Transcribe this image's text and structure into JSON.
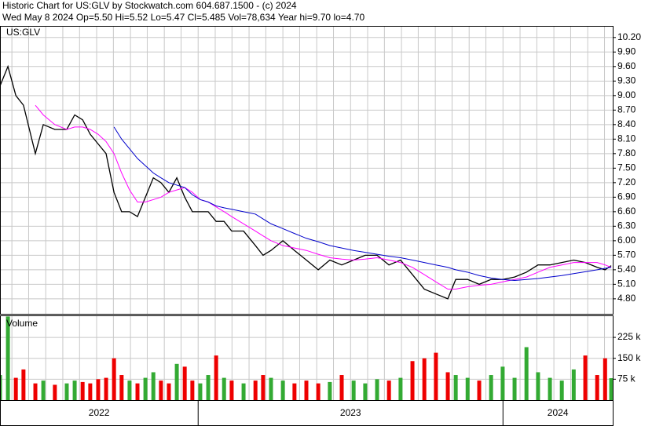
{
  "chart_data": {
    "type": "line",
    "title": "Historic Chart for US:GLV by Stockwatch.com 604.687.1500 - (c) 2024",
    "subtitle": "Wed May  8 2024  Op=5.50  Hi=5.52  Lo=5.47  Cl=5.485  Vol=78,634  Year hi=9.70  lo=4.70",
    "symbol": "US:GLV",
    "x": [
      2022.35,
      2022.376,
      2022.402,
      2022.427,
      2022.466,
      2022.492,
      2022.53,
      2022.569,
      2022.595,
      2022.621,
      2022.646,
      2022.672,
      2022.698,
      2022.724,
      2022.749,
      2022.775,
      2022.801,
      2022.827,
      2022.853,
      2022.878,
      2022.904,
      2022.93,
      2022.956,
      2022.981,
      2023.007,
      2023.033,
      2023.059,
      2023.085,
      2023.11,
      2023.149,
      2023.188,
      2023.213,
      2023.239,
      2023.278,
      2023.316,
      2023.355,
      2023.394,
      2023.432,
      2023.471,
      2023.51,
      2023.548,
      2023.587,
      2023.626,
      2023.664,
      2023.703,
      2023.742,
      2023.78,
      2023.819,
      2023.845,
      2023.884,
      2023.922,
      2023.961,
      2023.999,
      2024.038,
      2024.077,
      2024.115,
      2024.154,
      2024.193,
      2024.232,
      2024.27,
      2024.309,
      2024.335,
      2024.355
    ],
    "series": [
      {
        "color": "#000000",
        "values": [
          9.2,
          9.6,
          9.0,
          8.8,
          7.8,
          8.4,
          8.3,
          8.3,
          8.6,
          8.5,
          8.2,
          8.0,
          7.8,
          7.0,
          6.6,
          6.6,
          6.5,
          6.9,
          7.3,
          7.2,
          7.0,
          7.3,
          6.9,
          6.6,
          6.6,
          6.6,
          6.4,
          6.4,
          6.2,
          6.2,
          5.9,
          5.7,
          5.8,
          6.0,
          5.8,
          5.6,
          5.4,
          5.6,
          5.5,
          5.6,
          5.7,
          5.7,
          5.5,
          5.6,
          5.3,
          5.0,
          4.9,
          4.8,
          5.2,
          5.2,
          5.1,
          5.2,
          5.2,
          5.25,
          5.35,
          5.5,
          5.5,
          5.55,
          5.6,
          5.55,
          5.45,
          5.4,
          5.485
        ]
      },
      {
        "color": "#ff00ff",
        "values": [
          null,
          null,
          null,
          null,
          8.8,
          8.6,
          8.4,
          8.3,
          8.35,
          8.35,
          8.3,
          8.2,
          8.05,
          7.8,
          7.4,
          7.05,
          6.8,
          6.8,
          6.85,
          6.9,
          7.0,
          7.05,
          7.1,
          7.0,
          6.85,
          6.8,
          6.7,
          6.6,
          6.5,
          6.35,
          6.2,
          6.1,
          6.0,
          5.9,
          5.85,
          5.8,
          5.72,
          5.65,
          5.62,
          5.6,
          5.62,
          5.65,
          5.6,
          5.55,
          5.45,
          5.3,
          5.15,
          5.0,
          5.0,
          5.05,
          5.08,
          5.1,
          5.15,
          5.2,
          5.25,
          5.35,
          5.45,
          5.5,
          5.55,
          5.55,
          5.55,
          5.5,
          5.45
        ]
      },
      {
        "color": "#0000cc",
        "values": [
          null,
          null,
          null,
          null,
          null,
          null,
          null,
          null,
          null,
          null,
          null,
          null,
          null,
          8.35,
          8.1,
          7.9,
          7.7,
          7.55,
          7.4,
          7.3,
          7.2,
          7.15,
          7.1,
          6.95,
          6.85,
          6.8,
          6.72,
          6.68,
          6.65,
          6.6,
          6.55,
          6.45,
          6.35,
          6.25,
          6.15,
          6.05,
          5.98,
          5.9,
          5.85,
          5.8,
          5.76,
          5.72,
          5.68,
          5.65,
          5.6,
          5.55,
          5.5,
          5.45,
          5.4,
          5.35,
          5.28,
          5.23,
          5.2,
          5.18,
          5.2,
          5.22,
          5.25,
          5.28,
          5.32,
          5.36,
          5.4,
          5.43,
          5.45
        ]
      }
    ],
    "ylim": [
      4.49,
      10.44
    ],
    "yticks": [
      {
        "value": 10.2,
        "label": "10.20"
      },
      {
        "value": 9.9,
        "label": "9.90"
      },
      {
        "value": 9.6,
        "label": "9.60"
      },
      {
        "value": 9.3,
        "label": "9.30"
      },
      {
        "value": 9.0,
        "label": "9.00"
      },
      {
        "value": 8.7,
        "label": "8.70"
      },
      {
        "value": 8.4,
        "label": "8.40"
      },
      {
        "value": 8.1,
        "label": "8.10"
      },
      {
        "value": 7.8,
        "label": "7.80"
      },
      {
        "value": 7.5,
        "label": "7.50"
      },
      {
        "value": 7.2,
        "label": "7.20"
      },
      {
        "value": 6.9,
        "label": "6.90"
      },
      {
        "value": 6.6,
        "label": "6.60"
      },
      {
        "value": 6.3,
        "label": "6.30"
      },
      {
        "value": 6.0,
        "label": "6.00"
      },
      {
        "value": 5.7,
        "label": "5.70"
      },
      {
        "value": 5.4,
        "label": "5.40"
      },
      {
        "value": 5.1,
        "label": "5.10"
      },
      {
        "value": 4.8,
        "label": "4.80"
      }
    ],
    "xlim": [
      2022.35,
      2024.36
    ],
    "xticks": [
      2023,
      2024
    ],
    "year_labels": [
      "2022",
      "2023",
      "2024"
    ],
    "xgrid": [
      2022.389,
      2022.444,
      2022.5,
      2022.556,
      2022.611,
      2022.667,
      2022.722,
      2022.778,
      2022.833,
      2022.889,
      2022.944,
      2023.0,
      2023.056,
      2023.111,
      2023.167,
      2023.222,
      2023.278,
      2023.333,
      2023.389,
      2023.444,
      2023.5,
      2023.556,
      2023.611,
      2023.667,
      2023.722,
      2023.778,
      2023.833,
      2023.889,
      2023.944,
      2024.0,
      2024.056,
      2024.111,
      2024.167,
      2024.222,
      2024.278,
      2024.333
    ],
    "grid": true,
    "volume": {
      "label": "Volume",
      "up_color": "#33aa33",
      "down_color": "#ee0000",
      "values": [
        90000,
        300000,
        80000,
        110000,
        60000,
        70000,
        55000,
        60000,
        70000,
        65000,
        60000,
        75000,
        80000,
        150000,
        90000,
        70000,
        60000,
        80000,
        100000,
        70000,
        60000,
        130000,
        120000,
        70000,
        60000,
        90000,
        160000,
        80000,
        70000,
        60000,
        70000,
        90000,
        80000,
        70000,
        60000,
        70000,
        60000,
        65000,
        90000,
        70000,
        60000,
        75000,
        70000,
        80000,
        140000,
        150000,
        170000,
        100000,
        90000,
        80000,
        70000,
        90000,
        120000,
        80000,
        190000,
        100000,
        80000,
        70000,
        110000,
        160000,
        90000,
        150000,
        78634
      ],
      "ylim": [
        0,
        304000
      ],
      "yticks": [
        {
          "value": 225000,
          "label": "225 k"
        },
        {
          "value": 150000,
          "label": "150 k"
        },
        {
          "value": 75000,
          "label": "75 k"
        }
      ]
    }
  }
}
